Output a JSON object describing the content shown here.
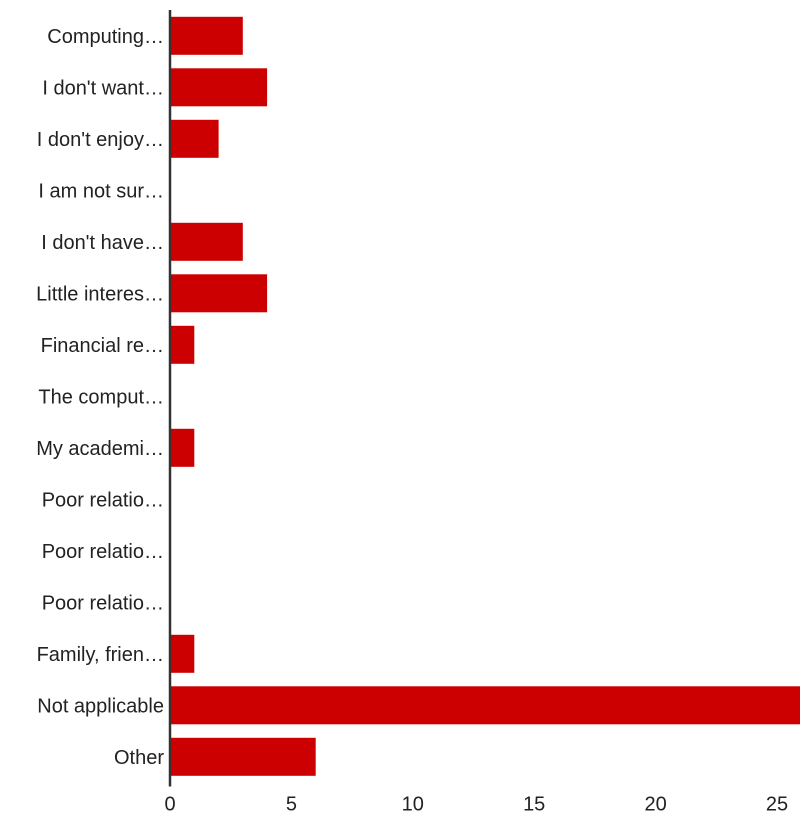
{
  "chart_data": {
    "type": "bar",
    "orientation": "horizontal",
    "title": "",
    "xlabel": "",
    "ylabel": "",
    "categories": [
      "Computing…",
      "I don't want…",
      "I don't enjoy…",
      "I am not sur…",
      "I don't have…",
      "Little interes…",
      "Financial re…",
      "The comput…",
      "My academi…",
      "Poor relatio…",
      "Poor relatio…",
      "Poor relatio…",
      "Family, frien…",
      "Not applicable",
      "Other"
    ],
    "values": [
      3,
      4,
      2,
      0,
      3,
      4,
      1,
      0,
      1,
      0,
      0,
      0,
      1,
      26,
      6
    ],
    "xlim": [
      0,
      25
    ],
    "xticks": [
      0,
      5,
      10,
      15,
      20,
      25
    ],
    "grid": false,
    "legend": "none",
    "bar_color": "#cc0000",
    "axis_color": "#333333",
    "text_color": "#222222"
  }
}
